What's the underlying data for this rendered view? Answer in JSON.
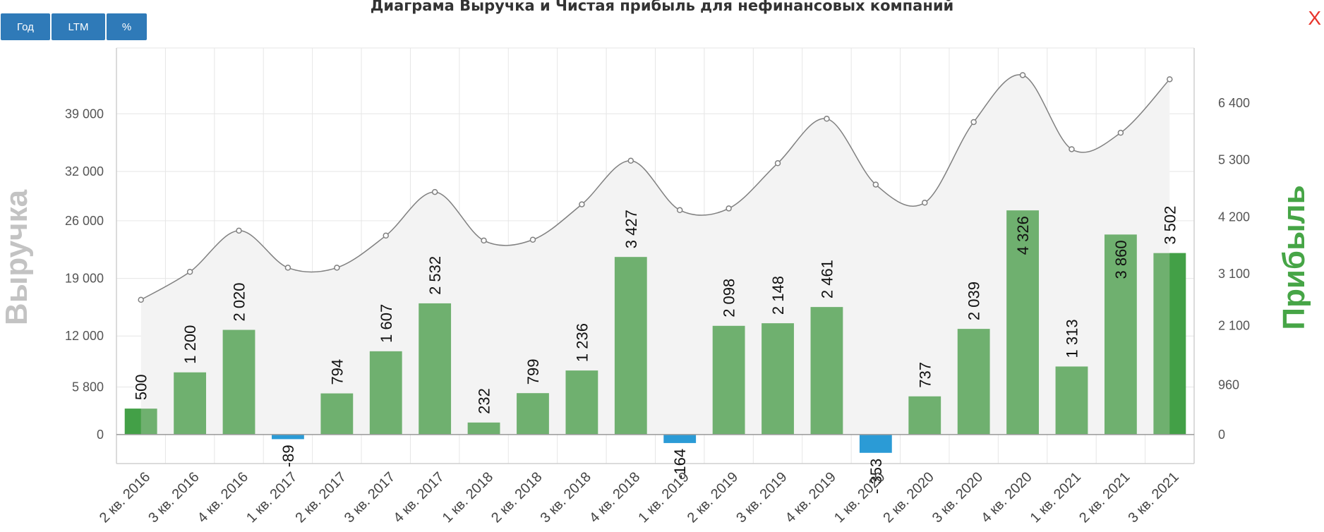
{
  "toolbar": {
    "year_label": "Год",
    "ltm_label": "LTM",
    "percent_label": "%",
    "close_label": "X"
  },
  "colors": {
    "profit_positive": "#6fb06f",
    "profit_positive_edge": "#43a047",
    "profit_negative": "#2b9bd6",
    "revenue_line": "#808080",
    "revenue_area": "#f3f3f3",
    "left_axis_title": "#c3c3c3",
    "right_axis_title": "#46a546"
  },
  "chart_data": {
    "type": "bar",
    "title": "Диаграма Выручка и Чистая прибыль для нефинансовых компаний",
    "categories": [
      "2 кв. 2016",
      "3 кв. 2016",
      "4 кв. 2016",
      "1 кв. 2017",
      "2 кв. 2017",
      "3 кв. 2017",
      "4 кв. 2017",
      "1 кв. 2018",
      "2 кв. 2018",
      "3 кв. 2018",
      "4 кв. 2018",
      "1 кв. 2019",
      "2 кв. 2019",
      "3 кв. 2019",
      "4 кв. 2019",
      "1 кв. 2020",
      "2 кв. 2020",
      "3 кв. 2020",
      "4 кв. 2020",
      "1 кв. 2021",
      "2 кв. 2021",
      "3 кв. 2021"
    ],
    "series": [
      {
        "name": "Прибыль",
        "type": "bar",
        "axis": "right",
        "values": [
          500,
          1200,
          2020,
          -89,
          794,
          1607,
          2532,
          232,
          799,
          1236,
          3427,
          -164,
          2098,
          2148,
          2461,
          -353,
          737,
          2039,
          4326,
          1313,
          3860,
          3502
        ],
        "labels": [
          "500",
          "1 200",
          "2 020",
          "-89",
          "794",
          "1 607",
          "2 532",
          "232",
          "799",
          "1 236",
          "3 427",
          "-164",
          "2 098",
          "2 148",
          "2 461",
          "- 353",
          "737",
          "2 039",
          "4 326",
          "1 313",
          "3 860",
          "3 502"
        ]
      },
      {
        "name": "Выручка",
        "type": "area-spline",
        "axis": "left",
        "values": [
          16400,
          19800,
          24800,
          20300,
          20300,
          24200,
          29500,
          23600,
          23700,
          28000,
          33300,
          27300,
          27500,
          33000,
          38400,
          30400,
          28200,
          38000,
          43700,
          34700,
          36700,
          43200
        ]
      }
    ],
    "ylabel_left": "Выручка",
    "ylabel_right": "Прибыль",
    "ylim_left": [
      -3500,
      47000
    ],
    "ylim_right": [
      -560,
      7460
    ],
    "yticks_left": [
      {
        "value": 0,
        "label": "0"
      },
      {
        "value": 5800,
        "label": "5 800"
      },
      {
        "value": 12000,
        "label": "12 000"
      },
      {
        "value": 19000,
        "label": "19 000"
      },
      {
        "value": 26000,
        "label": "26 000"
      },
      {
        "value": 32000,
        "label": "32 000"
      },
      {
        "value": 39000,
        "label": "39 000"
      }
    ],
    "yticks_right": [
      {
        "value": 0,
        "label": "0"
      },
      {
        "value": 960,
        "label": "960"
      },
      {
        "value": 2100,
        "label": "2 100"
      },
      {
        "value": 3100,
        "label": "3 100"
      },
      {
        "value": 4200,
        "label": "4 200"
      },
      {
        "value": 5300,
        "label": "5 300"
      },
      {
        "value": 6400,
        "label": "6 400"
      }
    ],
    "grid": true,
    "legend": "none"
  }
}
